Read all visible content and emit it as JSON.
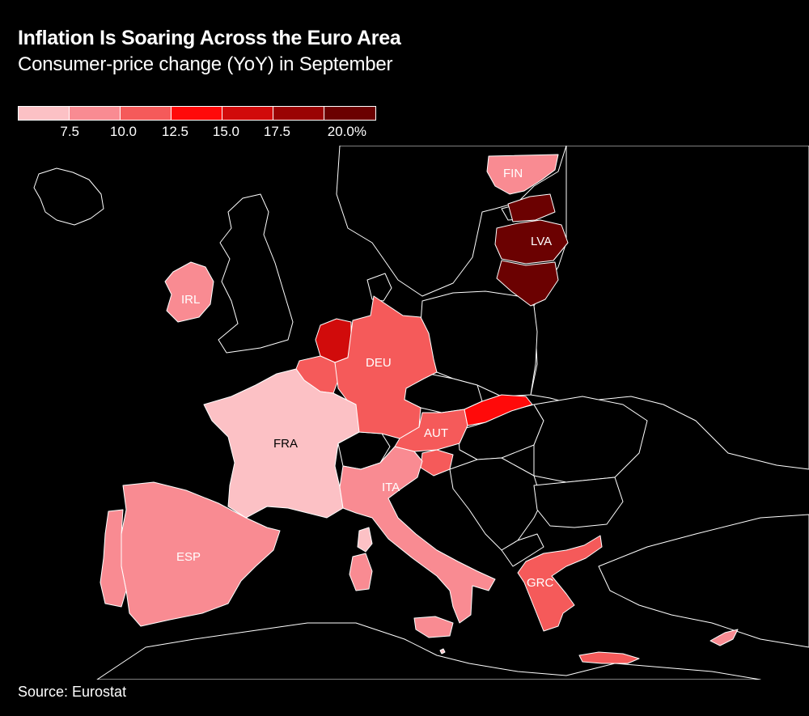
{
  "header": {
    "title": "Inflation Is Soaring Across the Euro Area",
    "subtitle": "Consumer-price change (YoY) in September"
  },
  "legend": {
    "colors": [
      "#fcc1c5",
      "#f98b92",
      "#f55a5a",
      "#ff0a0a",
      "#d10b0b",
      "#9a0303",
      "#6b0101"
    ],
    "labels": [
      "7.5",
      "10.0",
      "12.5",
      "15.0",
      "17.5",
      "20.0%"
    ]
  },
  "map": {
    "background_land_color": "#000000",
    "border_color": "#ffffff",
    "labels": {
      "fin": "FIN",
      "lva": "LVA",
      "irl": "IRL",
      "deu": "DEU",
      "fra": "FRA",
      "aut": "AUT",
      "ita": "ITA",
      "esp": "ESP",
      "grc": "GRC"
    }
  },
  "chart_data": {
    "type": "choropleth",
    "title": "Inflation Is Soaring Across the Euro Area",
    "subtitle": "Consumer-price change (YoY) in September",
    "legend_bins": [
      "7.5",
      "10.0",
      "12.5",
      "15.0",
      "17.5",
      "20.0%"
    ],
    "regions": [
      {
        "name": "FIN",
        "bin": 2
      },
      {
        "name": "LVA",
        "bin": 7
      },
      {
        "name": "IRL",
        "bin": 2
      },
      {
        "name": "DEU",
        "bin": 3
      },
      {
        "name": "FRA",
        "bin": 1
      },
      {
        "name": "AUT",
        "bin": 3
      },
      {
        "name": "ITA",
        "bin": 2
      },
      {
        "name": "ESP",
        "bin": 2
      },
      {
        "name": "GRC",
        "bin": 3
      }
    ]
  },
  "footer": {
    "source": "Source: Eurostat"
  }
}
